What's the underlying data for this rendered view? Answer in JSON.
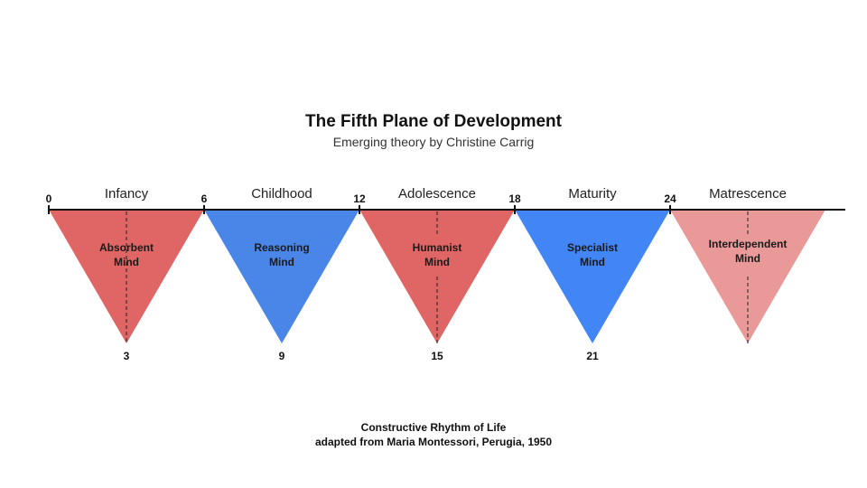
{
  "title": "The Fifth Plane of Development",
  "subtitle": "Emerging theory by Christine Carrig",
  "ticks": [
    "0",
    "6",
    "12",
    "18",
    "24"
  ],
  "planes": [
    {
      "label": "Infancy",
      "mind": [
        "Absorbent",
        "Mind"
      ],
      "mid": "3",
      "color": "#e06666",
      "dashed": "split"
    },
    {
      "label": "Childhood",
      "mind": [
        "Reasoning",
        "Mind"
      ],
      "mid": "9",
      "color": "#4a86e8",
      "dashed": "none"
    },
    {
      "label": "Adolescence",
      "mind": [
        "Humanist",
        "Mind"
      ],
      "mid": "15",
      "color": "#e06666",
      "dashed": "gapped"
    },
    {
      "label": "Maturity",
      "mind": [
        "Specialist",
        "Mind"
      ],
      "mid": "21",
      "color": "#4285f4",
      "dashed": "none"
    },
    {
      "label": "Matrescence",
      "mind": [
        "Interdependent",
        "Mind"
      ],
      "mid": "",
      "color": "#ea9999",
      "dashed": "gapped"
    }
  ],
  "footer": {
    "line1": "Constructive Rhythm of Life",
    "line2": "adapted from Maria Montessori, Perugia, 1950"
  }
}
